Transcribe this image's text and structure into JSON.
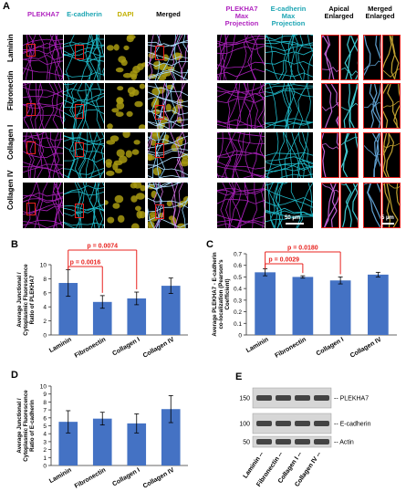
{
  "panel_a": {
    "label": "A",
    "headers": [
      {
        "text": "PLEKHA7",
        "color": "#b126c0"
      },
      {
        "text": "E-cadherin",
        "color": "#1fa6b4"
      },
      {
        "text": "DAPI",
        "color": "#c2b000"
      },
      {
        "text": "Merged",
        "color": "#000000"
      },
      {
        "text": "PLEKHA7 Max Projection",
        "color": "#b126c0"
      },
      {
        "text": "E-cadherin Max Projection",
        "color": "#1fa6b4"
      },
      {
        "text": "Apical Enlarged",
        "color": "#000000"
      },
      {
        "text": "Merged Enlarged",
        "color": "#000000"
      }
    ],
    "rows": [
      "Laminin",
      "Fibronectin",
      "Collagen I",
      "Collagen IV"
    ],
    "scale_bar_main": "50 µm",
    "scale_bar_enlarged": "5 µm"
  },
  "panel_b": {
    "label": "B",
    "chart_data": {
      "type": "bar",
      "categories": [
        "Laminin",
        "Fibronectin",
        "Collagen I",
        "Collagen IV"
      ],
      "values": [
        7.4,
        4.7,
        5.2,
        7.0
      ],
      "errors": [
        1.9,
        0.9,
        0.9,
        1.1
      ],
      "ylabel": "Average Junctional / Cytoplasmic Fluorescence Ratio of PLEKHA7",
      "ylim": [
        0,
        10
      ],
      "yticks": [
        "0",
        "2",
        "4",
        "6",
        "8",
        "10"
      ],
      "annotations": [
        {
          "text": "p = 0.0016",
          "from": 0,
          "to": 1
        },
        {
          "text": "p = 0.0074",
          "from": 0,
          "to": 2
        }
      ],
      "bar_color": "#4472c4",
      "annotation_color": "#e8231f"
    }
  },
  "panel_c": {
    "label": "C",
    "chart_data": {
      "type": "bar",
      "categories": [
        "Laminin",
        "Fibronectin",
        "Collagen I",
        "Collagen IV"
      ],
      "values": [
        0.54,
        0.5,
        0.47,
        0.52
      ],
      "errors": [
        0.03,
        0.01,
        0.03,
        0.02
      ],
      "ylabel": "Average PLEKHA7 - E-cadherin co-localization (Pearson's Coefficient)",
      "ylim": [
        0,
        0.7
      ],
      "yticks": [
        "0",
        "0.1",
        "0.2",
        "0.3",
        "0.4",
        "0.5",
        "0.6",
        "0.7"
      ],
      "annotations": [
        {
          "text": "p = 0.0029",
          "from": 0,
          "to": 1
        },
        {
          "text": "p = 0.0180",
          "from": 0,
          "to": 2
        }
      ],
      "bar_color": "#4472c4",
      "annotation_color": "#e8231f"
    }
  },
  "panel_d": {
    "label": "D",
    "chart_data": {
      "type": "bar",
      "categories": [
        "Laminin",
        "Fibronectin",
        "Collagen I",
        "Collagen IV"
      ],
      "values": [
        5.5,
        5.9,
        5.3,
        7.1
      ],
      "errors": [
        1.4,
        0.8,
        1.2,
        1.7
      ],
      "ylabel": "Average Junctional / Cytoplasmic Fluorescence Ratio of E-cadherin",
      "ylim": [
        0,
        10
      ],
      "yticks": [
        "0",
        "1",
        "2",
        "3",
        "4",
        "5",
        "6",
        "7",
        "8",
        "9",
        "10"
      ],
      "bar_color": "#4472c4"
    }
  },
  "panel_e": {
    "label": "E",
    "markers": [
      {
        "mw": "150",
        "band": "-- PLEKHA7"
      },
      {
        "mw": "100",
        "band": "-- E-cadherin"
      },
      {
        "mw": "50",
        "band": "-- Actin"
      }
    ],
    "lanes": [
      "Laminin --",
      "Fibronectin --",
      "Collagen I --",
      "Collagen IV --"
    ]
  }
}
